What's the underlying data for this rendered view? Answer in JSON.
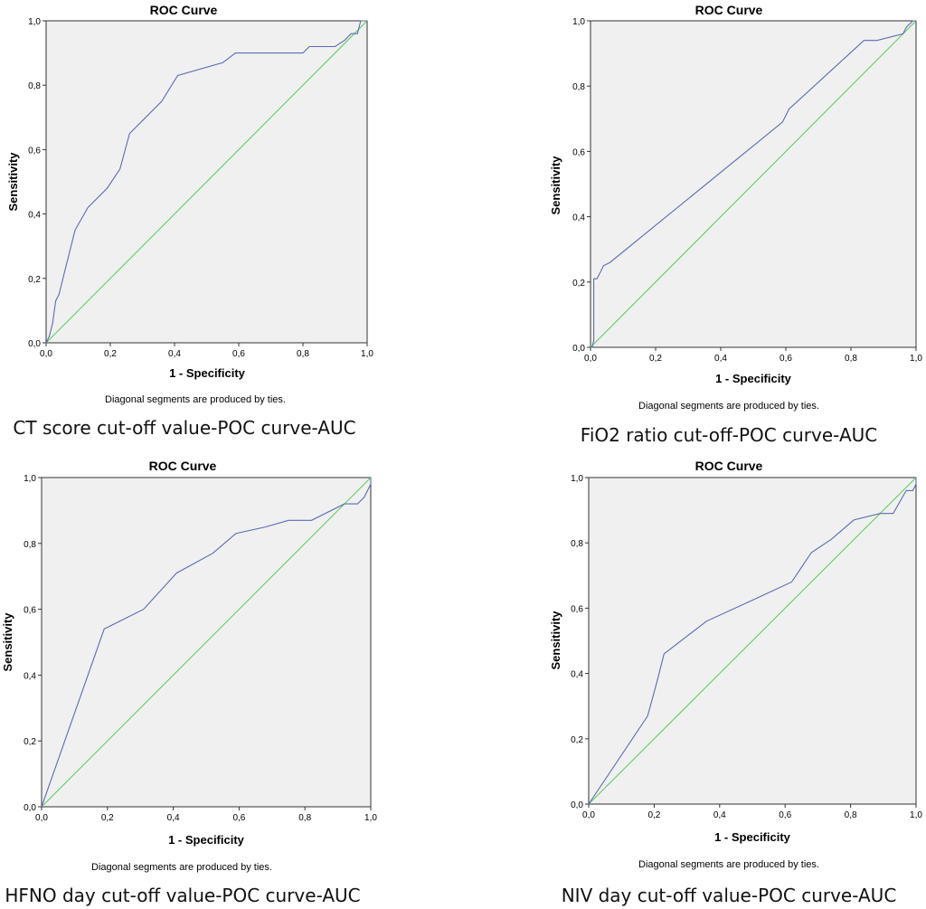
{
  "chart_data": [
    {
      "type": "line",
      "title": "ROC Curve",
      "xlabel": "1 - Specificity",
      "ylabel": "Sensitivity",
      "xlim": [
        0,
        1
      ],
      "ylim": [
        0,
        1
      ],
      "ticks": [
        "0,0",
        "0,2",
        "0,4",
        "0,6",
        "0,8",
        "1,0"
      ],
      "tick_values": [
        0,
        0.2,
        0.4,
        0.6,
        0.8,
        1.0
      ],
      "grid": false,
      "footnote": "Diagonal segments are produced by ties.",
      "caption": "CT score cut-off value-POC curve-AUC",
      "series": [
        {
          "x": [
            0.0,
            0.01,
            0.02,
            0.03,
            0.04,
            0.06,
            0.09,
            0.13,
            0.19,
            0.23,
            0.26,
            0.28,
            0.31,
            0.36,
            0.41,
            0.55,
            0.59,
            0.8,
            0.82,
            0.9,
            0.93,
            0.95,
            0.97,
            0.98,
            1.0
          ],
          "y": [
            0.0,
            0.02,
            0.06,
            0.13,
            0.15,
            0.23,
            0.35,
            0.42,
            0.48,
            0.54,
            0.65,
            0.67,
            0.7,
            0.75,
            0.83,
            0.87,
            0.9,
            0.9,
            0.92,
            0.92,
            0.94,
            0.96,
            0.96,
            1.0,
            1.0
          ]
        },
        {
          "x": [
            0,
            1
          ],
          "y": [
            0,
            1
          ]
        }
      ],
      "colors": [
        "#5b6bb3",
        "#5fcf5f"
      ]
    },
    {
      "type": "line",
      "title": "ROC Curve",
      "xlabel": "1 - Specificity",
      "ylabel": "Sensitivity",
      "xlim": [
        0,
        1
      ],
      "ylim": [
        0,
        1
      ],
      "ticks": [
        "0,0",
        "0,2",
        "0,4",
        "0,6",
        "0,8",
        "1,0"
      ],
      "tick_values": [
        0,
        0.2,
        0.4,
        0.6,
        0.8,
        1.0
      ],
      "grid": false,
      "footnote": "Diagonal segments are produced by ties.",
      "caption": "FiO2 ratio cut-off-POC curve-AUC",
      "series": [
        {
          "x": [
            0.0,
            0.005,
            0.01,
            0.01,
            0.02,
            0.04,
            0.06,
            0.59,
            0.61,
            0.84,
            0.88,
            0.96,
            0.97,
            0.99,
            1.0
          ],
          "y": [
            0.0,
            0.0,
            0.02,
            0.21,
            0.21,
            0.25,
            0.26,
            0.69,
            0.73,
            0.94,
            0.94,
            0.96,
            0.98,
            1.0,
            1.0
          ]
        },
        {
          "x": [
            0,
            1
          ],
          "y": [
            0,
            1
          ]
        }
      ],
      "colors": [
        "#5b6bb3",
        "#5fcf5f"
      ]
    },
    {
      "type": "line",
      "title": "ROC Curve",
      "xlabel": "1 - Specificity",
      "ylabel": "Sensitivity",
      "xlim": [
        0,
        1
      ],
      "ylim": [
        0,
        1
      ],
      "ticks": [
        "0,0",
        "0,2",
        "0,4",
        "0,6",
        "0,8",
        "1,0"
      ],
      "tick_values": [
        0,
        0.2,
        0.4,
        0.6,
        0.8,
        1.0
      ],
      "grid": false,
      "footnote": "Diagonal segments are produced by ties.",
      "caption": "HFNO day cut-off value-POC curve-AUC",
      "series": [
        {
          "x": [
            0.0,
            0.19,
            0.31,
            0.41,
            0.52,
            0.59,
            0.68,
            0.75,
            0.82,
            0.92,
            0.96,
            0.98,
            1.0,
            1.0
          ],
          "y": [
            0.0,
            0.54,
            0.6,
            0.71,
            0.77,
            0.83,
            0.85,
            0.87,
            0.87,
            0.92,
            0.92,
            0.94,
            0.98,
            1.0
          ]
        },
        {
          "x": [
            0,
            1
          ],
          "y": [
            0,
            1
          ]
        }
      ],
      "colors": [
        "#5b6bb3",
        "#5fcf5f"
      ]
    },
    {
      "type": "line",
      "title": "ROC Curve",
      "xlabel": "1 - Specificity",
      "ylabel": "Sensitivity",
      "xlim": [
        0,
        1
      ],
      "ylim": [
        0,
        1
      ],
      "ticks": [
        "0,0",
        "0,2",
        "0,4",
        "0,6",
        "0,8",
        "1,0"
      ],
      "tick_values": [
        0,
        0.2,
        0.4,
        0.6,
        0.8,
        1.0
      ],
      "grid": false,
      "footnote": "Diagonal segments are produced by ties.",
      "caption": "NIV day cut-off value-POC curve-AUC",
      "series": [
        {
          "x": [
            0.0,
            0.18,
            0.21,
            0.23,
            0.36,
            0.49,
            0.62,
            0.68,
            0.74,
            0.81,
            0.89,
            0.93,
            0.97,
            0.99,
            1.0,
            1.0
          ],
          "y": [
            0.0,
            0.27,
            0.38,
            0.46,
            0.56,
            0.62,
            0.68,
            0.77,
            0.81,
            0.87,
            0.89,
            0.89,
            0.96,
            0.96,
            0.98,
            1.0
          ]
        },
        {
          "x": [
            0,
            1
          ],
          "y": [
            0,
            1
          ]
        }
      ],
      "colors": [
        "#5b6bb3",
        "#5fcf5f"
      ]
    }
  ]
}
